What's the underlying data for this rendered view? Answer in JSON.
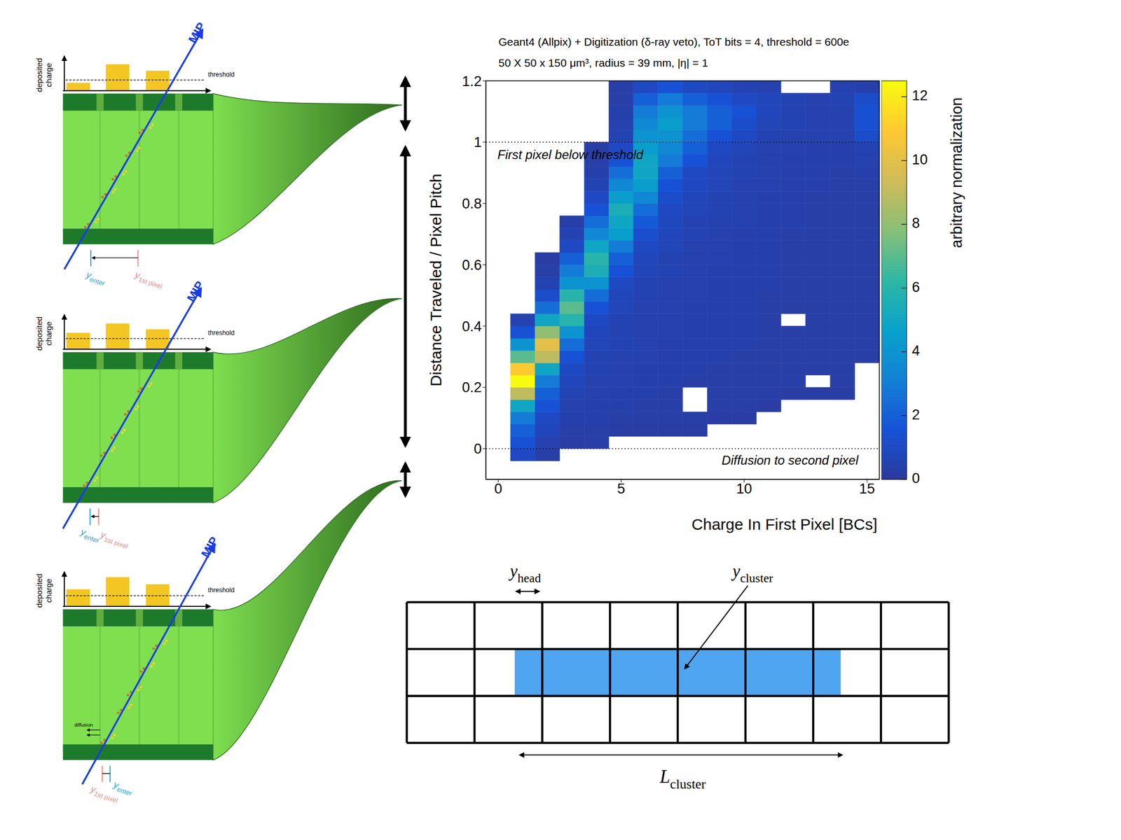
{
  "chart_data": {
    "type": "heatmap",
    "title": "Geant4 (Allpix) + Digitization (δ-ray veto), ToT bits = 4, threshold = 600e",
    "subtitle": "50 X 50 x 150 μm³, radius = 39 mm, |η| = 1",
    "x_label": "Charge In First Pixel [BCs]",
    "y_label": "Distance Traveled / Pixel Pitch",
    "xlim": [
      -0.5,
      15.5
    ],
    "xticks": [
      0,
      5,
      10,
      15
    ],
    "ylim": [
      -0.1,
      1.2
    ],
    "yticks": [
      0,
      0.2,
      0.4,
      0.6,
      0.8,
      1,
      1.2
    ],
    "x_edges": [
      0.5,
      1.5,
      2.5,
      3.5,
      4.5,
      5.5,
      6.5,
      7.5,
      8.5,
      9.5,
      10.5,
      11.5,
      12.5,
      13.5,
      14.5,
      15.5
    ],
    "y_edges": [
      -0.04,
      0,
      0.04,
      0.08,
      0.12,
      0.16,
      0.2,
      0.24,
      0.28,
      0.32,
      0.36,
      0.4,
      0.44,
      0.48,
      0.52,
      0.56,
      0.6,
      0.64,
      0.68,
      0.72,
      0.76,
      0.8,
      0.84,
      0.88,
      0.92,
      0.96,
      1,
      1.04,
      1.08,
      1.12,
      1.16,
      1.2
    ],
    "z": [
      [
        1,
        0.3,
        null,
        null,
        null,
        null,
        null,
        null,
        null,
        null,
        null,
        null,
        null,
        null,
        null
      ],
      [
        1.5,
        0.5,
        0.2,
        0.3,
        null,
        null,
        null,
        null,
        null,
        null,
        null,
        null,
        null,
        null,
        null
      ],
      [
        2,
        0.8,
        0.3,
        0.3,
        0.2,
        0.2,
        0.2,
        0.2,
        null,
        null,
        null,
        null,
        null,
        null,
        null
      ],
      [
        3,
        1,
        0.4,
        0.4,
        0.3,
        0.3,
        0.3,
        0.3,
        0.2,
        0.2,
        null,
        null,
        null,
        null,
        null
      ],
      [
        5,
        1.5,
        0.5,
        0.4,
        0.4,
        0.3,
        0.3,
        null,
        0.3,
        0.3,
        0.2,
        null,
        null,
        null,
        null
      ],
      [
        9,
        2,
        0.6,
        0.5,
        0.4,
        0.4,
        0.3,
        null,
        0.3,
        0.3,
        0.3,
        0.2,
        0.2,
        0.2,
        null
      ],
      [
        12.5,
        3,
        0.8,
        0.5,
        0.5,
        0.4,
        0.4,
        0.3,
        0.3,
        0.3,
        0.3,
        0.3,
        null,
        0.3,
        null
      ],
      [
        11,
        5,
        1,
        0.6,
        0.5,
        0.4,
        0.4,
        0.4,
        0.3,
        0.3,
        0.3,
        0.3,
        0.3,
        0.3,
        null
      ],
      [
        7,
        9,
        1.5,
        0.6,
        0.5,
        0.5,
        0.4,
        0.4,
        0.4,
        0.3,
        0.3,
        0.3,
        0.3,
        0.3,
        0.3
      ],
      [
        4,
        10,
        2.5,
        0.7,
        0.6,
        0.5,
        0.4,
        0.4,
        0.4,
        0.4,
        0.3,
        0.3,
        0.3,
        0.3,
        0.3
      ],
      [
        1.5,
        8,
        4,
        0.8,
        0.6,
        0.5,
        0.5,
        0.4,
        0.4,
        0.4,
        0.3,
        0.3,
        0.3,
        0.3,
        0.3
      ],
      [
        0.5,
        5,
        6,
        1,
        0.6,
        0.5,
        0.5,
        0.4,
        0.4,
        0.4,
        0.3,
        null,
        0.3,
        0.3,
        0.3
      ],
      [
        null,
        2.5,
        7,
        1.5,
        0.7,
        0.5,
        0.5,
        0.4,
        0.4,
        0.4,
        0.3,
        0.3,
        0.3,
        0.3,
        0.3
      ],
      [
        null,
        1.2,
        6,
        2.5,
        0.8,
        0.6,
        0.5,
        0.5,
        0.4,
        0.4,
        0.3,
        0.3,
        0.3,
        0.3,
        0.3
      ],
      [
        null,
        0.6,
        4,
        4,
        1,
        0.6,
        0.5,
        0.5,
        0.4,
        0.4,
        0.4,
        0.3,
        0.3,
        0.3,
        0.3
      ],
      [
        null,
        0.3,
        3,
        5.5,
        1.5,
        0.7,
        0.6,
        0.5,
        0.4,
        0.4,
        0.4,
        0.3,
        0.3,
        0.3,
        0.3
      ],
      [
        null,
        0.2,
        2,
        6,
        2,
        0.8,
        0.6,
        0.5,
        0.5,
        0.4,
        0.4,
        0.3,
        0.3,
        0.3,
        0.3
      ],
      [
        null,
        null,
        1,
        5,
        3,
        1,
        0.7,
        0.5,
        0.5,
        0.4,
        0.4,
        0.3,
        0.3,
        0.3,
        0.3
      ],
      [
        null,
        null,
        0.6,
        3.5,
        4.5,
        1.3,
        0.8,
        0.6,
        0.5,
        0.4,
        0.4,
        0.3,
        0.3,
        0.3,
        0.3
      ],
      [
        null,
        null,
        0.3,
        2.5,
        5,
        1.8,
        0.9,
        0.6,
        0.5,
        0.5,
        0.4,
        0.4,
        0.3,
        0.3,
        0.3
      ],
      [
        null,
        null,
        null,
        1.5,
        5.5,
        2.5,
        1,
        0.7,
        0.6,
        0.5,
        0.4,
        0.4,
        0.3,
        0.3,
        0.3
      ],
      [
        null,
        null,
        null,
        1,
        4.5,
        3.5,
        1.2,
        0.8,
        0.6,
        0.5,
        0.4,
        0.4,
        0.3,
        0.3,
        0.3
      ],
      [
        null,
        null,
        null,
        0.6,
        3.5,
        4.5,
        1.5,
        0.9,
        0.7,
        0.5,
        0.5,
        0.4,
        0.4,
        0.3,
        0.3
      ],
      [
        null,
        null,
        null,
        0.4,
        2.5,
        5,
        2,
        1,
        0.7,
        0.6,
        0.5,
        0.4,
        0.4,
        0.3,
        0.4
      ],
      [
        null,
        null,
        null,
        0.3,
        1.5,
        5,
        3,
        1.5,
        0.8,
        0.6,
        0.5,
        0.4,
        0.4,
        0.4,
        0.5
      ],
      [
        null,
        null,
        null,
        0.2,
        1,
        4.5,
        3.5,
        2,
        1,
        0.7,
        0.5,
        0.5,
        0.4,
        0.4,
        0.6
      ],
      [
        null,
        null,
        null,
        null,
        0.6,
        4,
        4,
        2.5,
        1.5,
        1,
        0.6,
        0.5,
        0.5,
        0.5,
        1.2
      ],
      [
        null,
        null,
        null,
        null,
        0.5,
        3.5,
        4.5,
        3,
        2,
        1.2,
        0.7,
        0.6,
        0.5,
        0.5,
        1.4
      ],
      [
        null,
        null,
        null,
        null,
        0.4,
        3,
        4,
        3,
        2,
        1.5,
        0.8,
        0.6,
        0.5,
        0.5,
        1.4
      ],
      [
        null,
        null,
        null,
        null,
        0.3,
        2,
        3,
        2,
        1.5,
        1,
        0.8,
        0.6,
        0.5,
        0.6,
        1.2
      ],
      [
        null,
        null,
        null,
        null,
        0.3,
        1,
        1.5,
        1,
        0.8,
        0.6,
        0.5,
        null,
        null,
        0.5,
        0.4
      ]
    ],
    "colorbar": {
      "label": "arbitrary normalization",
      "range": [
        0,
        12.5
      ],
      "ticks": [
        0,
        2,
        4,
        6,
        8,
        10,
        12
      ]
    },
    "annotations": [
      {
        "text": "First pixel below threshold",
        "y": 1
      },
      {
        "text": "Diffusion to second pixel",
        "y": 0
      }
    ]
  },
  "diagram": {
    "axis_label": "deposited charge",
    "threshold_label": "threshold",
    "track_label": "MIP",
    "diffusion_label": "diffusion",
    "y_enter": {
      "symbol": "y",
      "subscript": "enter"
    },
    "y_first_pixel": {
      "symbol": "y",
      "subscript": "1st pixel"
    },
    "panels": [
      {
        "deposited_charge": [
          11,
          37,
          28
        ],
        "threshold": 15
      },
      {
        "deposited_charge": [
          23,
          36,
          28
        ],
        "threshold": 15
      },
      {
        "deposited_charge": [
          24,
          41,
          31
        ],
        "threshold": 15
      }
    ],
    "cluster": {
      "head": {
        "symbol": "y",
        "subscript": "head"
      },
      "center": {
        "symbol": "y",
        "subscript": "cluster"
      },
      "length": {
        "symbol": "L",
        "subscript": "cluster"
      }
    }
  }
}
